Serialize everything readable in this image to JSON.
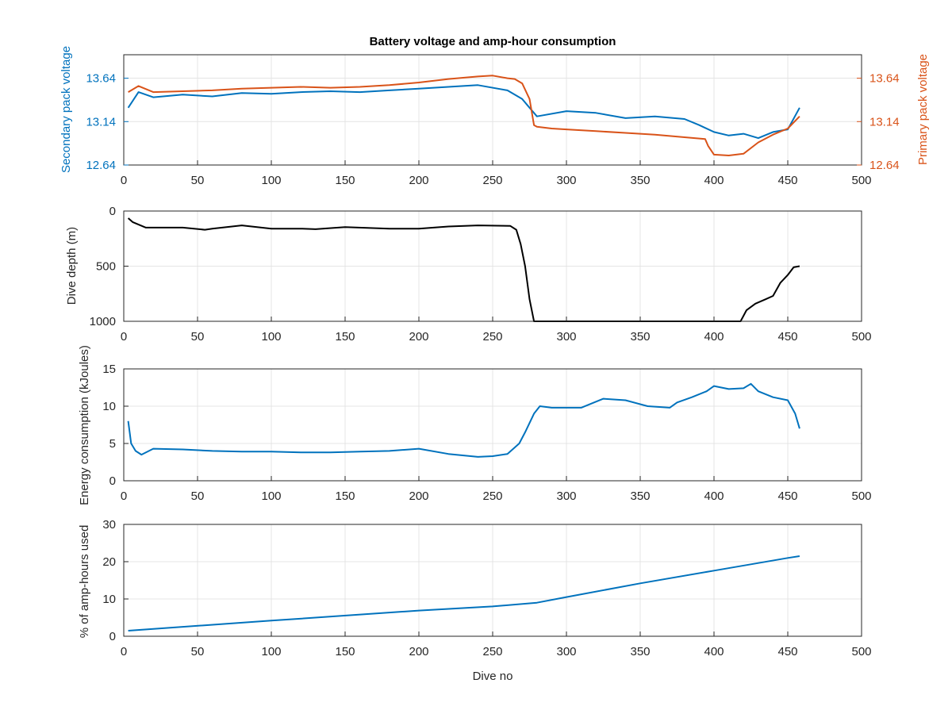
{
  "colors": {
    "blue": "#0072BD",
    "orange": "#D95319",
    "black": "#000000",
    "grid": "#e4e4e4",
    "axis": "#262626"
  },
  "chart_data": [
    {
      "type": "line",
      "title": "Battery voltage and amp-hour consumption",
      "xlabel": "",
      "ylabel": "Secondary pack voltage",
      "ylabel_right": "Primary pack voltage",
      "xlim": [
        0,
        500
      ],
      "ylim": [
        12.64,
        13.91
      ],
      "ylim_right": [
        12.64,
        13.91
      ],
      "xticks": [
        "0",
        "50",
        "100",
        "150",
        "200",
        "250",
        "300",
        "350",
        "400",
        "450",
        "500"
      ],
      "yticks": [
        "12.64",
        "13.14",
        "13.64"
      ],
      "yticks_right": [
        "12.64",
        "13.14",
        "13.64"
      ],
      "grid": true,
      "series": [
        {
          "axis": "left",
          "color": "#0072BD",
          "x": [
            3,
            10,
            20,
            40,
            60,
            80,
            100,
            120,
            140,
            160,
            180,
            200,
            220,
            240,
            260,
            270,
            275,
            280,
            300,
            320,
            340,
            360,
            380,
            390,
            400,
            410,
            420,
            430,
            440,
            450,
            458
          ],
          "y": [
            13.3,
            13.48,
            13.42,
            13.45,
            13.43,
            13.47,
            13.46,
            13.48,
            13.49,
            13.48,
            13.5,
            13.52,
            13.54,
            13.56,
            13.5,
            13.4,
            13.3,
            13.2,
            13.26,
            13.24,
            13.18,
            13.2,
            13.17,
            13.1,
            13.02,
            12.98,
            13.0,
            12.95,
            13.02,
            13.05,
            13.3
          ]
        },
        {
          "axis": "right",
          "color": "#D95319",
          "x": [
            3,
            10,
            20,
            40,
            60,
            80,
            100,
            120,
            140,
            160,
            180,
            200,
            220,
            240,
            250,
            260,
            265,
            270,
            275,
            278,
            280,
            290,
            300,
            320,
            340,
            360,
            380,
            394,
            396,
            400,
            410,
            420,
            430,
            440,
            450,
            458
          ],
          "y": [
            13.48,
            13.55,
            13.48,
            13.49,
            13.5,
            13.52,
            13.53,
            13.54,
            13.53,
            13.54,
            13.56,
            13.59,
            13.63,
            13.66,
            13.67,
            13.64,
            13.63,
            13.58,
            13.4,
            13.1,
            13.08,
            13.06,
            13.05,
            13.03,
            13.01,
            12.99,
            12.96,
            12.94,
            12.86,
            12.76,
            12.75,
            12.77,
            12.9,
            12.99,
            13.06,
            13.2
          ]
        }
      ]
    },
    {
      "type": "line",
      "title": "",
      "xlabel": "",
      "ylabel": "Dive depth (m)",
      "xlim": [
        0,
        500
      ],
      "ylim": [
        0,
        1000
      ],
      "y_reversed": true,
      "xticks": [
        "0",
        "50",
        "100",
        "150",
        "200",
        "250",
        "300",
        "350",
        "400",
        "450",
        "500"
      ],
      "yticks": [
        "0",
        "500",
        "1000"
      ],
      "grid": true,
      "series": [
        {
          "color": "#000000",
          "x": [
            3,
            6,
            15,
            40,
            55,
            60,
            80,
            100,
            120,
            130,
            150,
            180,
            200,
            220,
            240,
            262,
            266,
            269,
            272,
            275,
            278,
            300,
            340,
            380,
            410,
            418,
            422,
            428,
            435,
            440,
            445,
            450,
            454,
            458
          ],
          "y": [
            65,
            100,
            150,
            150,
            170,
            160,
            130,
            160,
            160,
            165,
            145,
            160,
            160,
            140,
            130,
            135,
            170,
            300,
            500,
            800,
            1000,
            1000,
            1000,
            1000,
            1000,
            1000,
            900,
            840,
            800,
            770,
            650,
            580,
            510,
            500
          ]
        }
      ]
    },
    {
      "type": "line",
      "title": "",
      "xlabel": "",
      "ylabel": "Energy consumption (kJoules)",
      "xlim": [
        0,
        500
      ],
      "ylim": [
        0,
        15
      ],
      "xticks": [
        "0",
        "50",
        "100",
        "150",
        "200",
        "250",
        "300",
        "350",
        "400",
        "450",
        "500"
      ],
      "yticks": [
        "0",
        "5",
        "10",
        "15"
      ],
      "grid": true,
      "series": [
        {
          "color": "#0072BD",
          "x": [
            3,
            5,
            8,
            12,
            20,
            40,
            60,
            80,
            100,
            120,
            140,
            160,
            180,
            200,
            220,
            240,
            250,
            260,
            268,
            272,
            278,
            282,
            290,
            310,
            325,
            340,
            355,
            370,
            375,
            385,
            395,
            400,
            410,
            420,
            425,
            430,
            440,
            450,
            455,
            458
          ],
          "y": [
            8.0,
            5.0,
            4.0,
            3.5,
            4.3,
            4.2,
            4.0,
            3.9,
            3.9,
            3.8,
            3.8,
            3.9,
            4.0,
            4.3,
            3.6,
            3.2,
            3.3,
            3.6,
            5.0,
            6.5,
            9.0,
            10.0,
            9.8,
            9.8,
            11.0,
            10.8,
            10.0,
            9.8,
            10.5,
            11.2,
            12.0,
            12.7,
            12.3,
            12.4,
            13.0,
            12.0,
            11.2,
            10.8,
            9.0,
            7.0
          ]
        }
      ]
    },
    {
      "type": "line",
      "title": "",
      "xlabel": "Dive no",
      "ylabel": "% of amp-hours used",
      "xlim": [
        0,
        500
      ],
      "ylim": [
        0,
        30
      ],
      "xticks": [
        "0",
        "50",
        "100",
        "150",
        "200",
        "250",
        "300",
        "350",
        "400",
        "450",
        "500"
      ],
      "yticks": [
        "0",
        "10",
        "20",
        "30"
      ],
      "grid": true,
      "series": [
        {
          "color": "#0072BD",
          "x": [
            3,
            100,
            200,
            250,
            280,
            300,
            350,
            400,
            450,
            458
          ],
          "y": [
            1.5,
            4.2,
            6.9,
            8.0,
            9.0,
            10.5,
            14.2,
            17.6,
            21.0,
            21.5
          ]
        }
      ]
    }
  ]
}
